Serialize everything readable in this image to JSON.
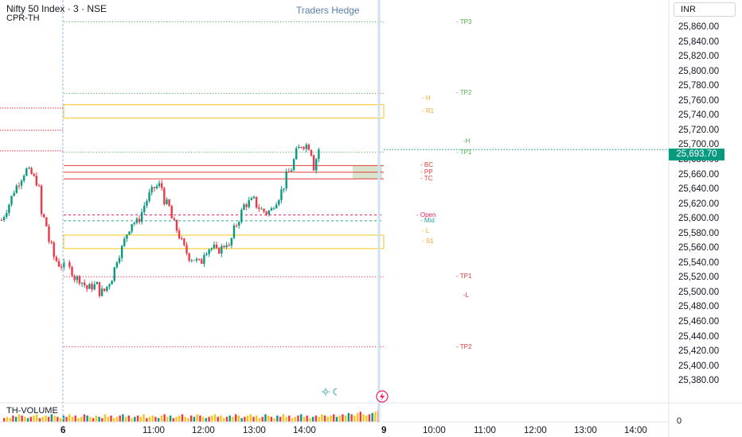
{
  "header": {
    "title": "Nifty 50 Index · 3 · NSE",
    "subtitle": "CPR-TH",
    "brand": "Traders Hedge",
    "currency": "INR"
  },
  "volume": {
    "label": "TH-VOLUME",
    "zero": "0"
  },
  "last_price": {
    "label": "25,693.70",
    "value": 25693.7,
    "color": "#089981"
  },
  "colors": {
    "up": "#089981",
    "down": "#f23645",
    "level_green": "#4caf50",
    "level_red": "#e53935",
    "level_orange": "#f5a623",
    "box_border": "#f5c518",
    "mid_teal": "#26a69a",
    "open_pink": "#e91e63"
  },
  "chart_data": {
    "type": "candlestick",
    "instrument": "Nifty 50 Index",
    "interval": "3",
    "exchange": "NSE",
    "indicator": "CPR-TH",
    "yaxis": {
      "range": [
        25370,
        25890
      ],
      "ticks": [
        25860,
        25840,
        25820,
        25800,
        25780,
        25760,
        25740,
        25720,
        25700,
        25680,
        25660,
        25640,
        25620,
        25600,
        25580,
        25560,
        25540,
        25520,
        25500,
        25480,
        25460,
        25440,
        25420,
        25400,
        25380
      ],
      "tick_labels": [
        "25,860.00",
        "25,840.00",
        "25,820.00",
        "25,800.00",
        "25,780.00",
        "25,760.00",
        "25,740.00",
        "25,720.00",
        "25,700.00",
        "25,680.00",
        "25,660.00",
        "25,640.00",
        "25,620.00",
        "25,600.00",
        "25,580.00",
        "25,560.00",
        "25,540.00",
        "25,520.00",
        "25,500.00",
        "25,480.00",
        "25,460.00",
        "25,440.00",
        "25,420.00",
        "25,400.00",
        "25,380.00"
      ]
    },
    "xaxis": {
      "labels": [
        "6",
        "11:00",
        "12:00",
        "13:00",
        "14:00",
        "9",
        "10:00",
        "11:00",
        "12:00",
        "13:00",
        "14:00"
      ]
    },
    "levels": [
      {
        "label": "TP3",
        "value": 25867,
        "color": "#4caf50",
        "style": "dotted"
      },
      {
        "label": "TP2",
        "value": 25770,
        "color": "#4caf50",
        "style": "dotted"
      },
      {
        "label": "H",
        "value": 25763,
        "color": "#f5a623",
        "style": "none"
      },
      {
        "label": "R1",
        "value": 25746,
        "color": "#f5a623",
        "style": "box"
      },
      {
        "label": "H",
        "value": 25705,
        "color": "#4caf50",
        "style": "none"
      },
      {
        "label": "TP1",
        "value": 25690,
        "color": "#4caf50",
        "style": "dotted"
      },
      {
        "label": "BC",
        "value": 25672,
        "color": "#e53935",
        "style": "solid"
      },
      {
        "label": "PP",
        "value": 25663,
        "color": "#e53935",
        "style": "solid"
      },
      {
        "label": "TC",
        "value": 25654,
        "color": "#e53935",
        "style": "solid"
      },
      {
        "label": "Open",
        "value": 25605,
        "color": "#e91e63",
        "style": "dashed"
      },
      {
        "label": "Mid",
        "value": 25597,
        "color": "#26a69a",
        "style": "dashed"
      },
      {
        "label": "L",
        "value": 25583,
        "color": "#f5a623",
        "style": "none"
      },
      {
        "label": "S1",
        "value": 25569,
        "color": "#f5a623",
        "style": "box"
      },
      {
        "label": "TP1",
        "value": 25521,
        "color": "#e53935",
        "style": "dotted"
      },
      {
        "label": "L",
        "value": 25496,
        "color": "#e53935",
        "style": "none"
      },
      {
        "label": "TP2",
        "value": 25426,
        "color": "#e53935",
        "style": "dotted"
      }
    ],
    "prev_day_levels": [
      25750,
      25720,
      25692
    ],
    "path": [
      [
        0,
        25598
      ],
      [
        3,
        25620
      ],
      [
        5,
        25638
      ],
      [
        7,
        25650
      ],
      [
        9,
        25662
      ],
      [
        10,
        25666
      ],
      [
        12,
        25660
      ],
      [
        14,
        25650
      ],
      [
        15,
        25640
      ],
      [
        16,
        25605
      ],
      [
        17,
        25600
      ],
      [
        18,
        25590
      ],
      [
        19,
        25570
      ],
      [
        20,
        25562
      ],
      [
        21,
        25548
      ],
      [
        23,
        25538
      ],
      [
        25,
        25535
      ],
      [
        27,
        25528
      ],
      [
        28,
        25520
      ],
      [
        30,
        25518
      ],
      [
        32,
        25510
      ],
      [
        33,
        25505
      ],
      [
        35,
        25508
      ],
      [
        37,
        25510
      ],
      [
        38,
        25500
      ],
      [
        40,
        25502
      ],
      [
        41,
        25508
      ],
      [
        43,
        25520
      ],
      [
        45,
        25545
      ],
      [
        47,
        25560
      ],
      [
        49,
        25580
      ],
      [
        51,
        25595
      ],
      [
        53,
        25595
      ],
      [
        54,
        25600
      ],
      [
        56,
        25618
      ],
      [
        58,
        25632
      ],
      [
        60,
        25642
      ],
      [
        62,
        25645
      ],
      [
        63,
        25642
      ],
      [
        64,
        25625
      ],
      [
        66,
        25615
      ],
      [
        67,
        25600
      ],
      [
        69,
        25585
      ],
      [
        71,
        25568
      ],
      [
        72,
        25560
      ],
      [
        74,
        25548
      ],
      [
        76,
        25545
      ],
      [
        78,
        25540
      ],
      [
        79,
        25542
      ],
      [
        80,
        25555
      ],
      [
        82,
        25560
      ],
      [
        84,
        25560
      ],
      [
        85,
        25555
      ],
      [
        87,
        25560
      ],
      [
        89,
        25568
      ],
      [
        90,
        25560
      ],
      [
        92,
        25585
      ],
      [
        94,
        25600
      ],
      [
        96,
        25618
      ],
      [
        98,
        25622
      ],
      [
        100,
        25625
      ],
      [
        101,
        25618
      ],
      [
        103,
        25612
      ],
      [
        105,
        25608
      ],
      [
        107,
        25612
      ],
      [
        108,
        25620
      ],
      [
        110,
        25630
      ],
      [
        112,
        25645
      ],
      [
        113,
        25658
      ],
      [
        115,
        25668
      ],
      [
        117,
        25690
      ],
      [
        119,
        25700
      ],
      [
        121,
        25700
      ],
      [
        122,
        25698
      ],
      [
        123,
        25690
      ],
      [
        124,
        25670
      ],
      [
        126,
        25693.7
      ]
    ],
    "volume": [
      3,
      4,
      3,
      5,
      4,
      6,
      5,
      4,
      3,
      4,
      5,
      6,
      3,
      4,
      5,
      4,
      6,
      5,
      4,
      3,
      5,
      4,
      6,
      4,
      5,
      3,
      4,
      6,
      5,
      4,
      3,
      5,
      4,
      3,
      6,
      4,
      5,
      3,
      4,
      5,
      6,
      4,
      5,
      3,
      4,
      5,
      4,
      6,
      3,
      4,
      5,
      4,
      3,
      5,
      6,
      4,
      5,
      3,
      4,
      5,
      6,
      4,
      3,
      5,
      4,
      6,
      5,
      4,
      3,
      4,
      5,
      6,
      4,
      5,
      3,
      4,
      5,
      4,
      6,
      5,
      3,
      4,
      5,
      6,
      4,
      5,
      3,
      4,
      6,
      5,
      4,
      3,
      5,
      4,
      6,
      4,
      5,
      3,
      4,
      5,
      6,
      4,
      5,
      3,
      4,
      5,
      4,
      6,
      5,
      4,
      5,
      6,
      4,
      5,
      6,
      5,
      7,
      6,
      5,
      7,
      8,
      6,
      5,
      6,
      7,
      8,
      9
    ]
  }
}
